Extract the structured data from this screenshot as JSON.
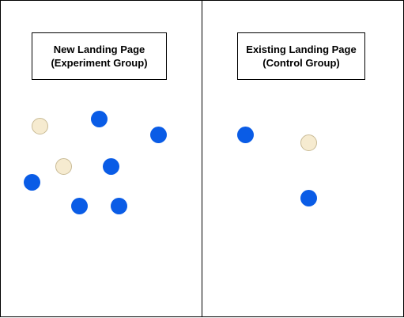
{
  "experiment_panel": {
    "title_line1": "New Landing Page",
    "title_line2": "(Experiment Group)"
  },
  "control_panel": {
    "title_line1": "Existing Landing Page",
    "title_line2": "(Control Group)"
  },
  "colors": {
    "converted": "#0a5ce6",
    "not_converted": "#f6ebd0"
  }
}
